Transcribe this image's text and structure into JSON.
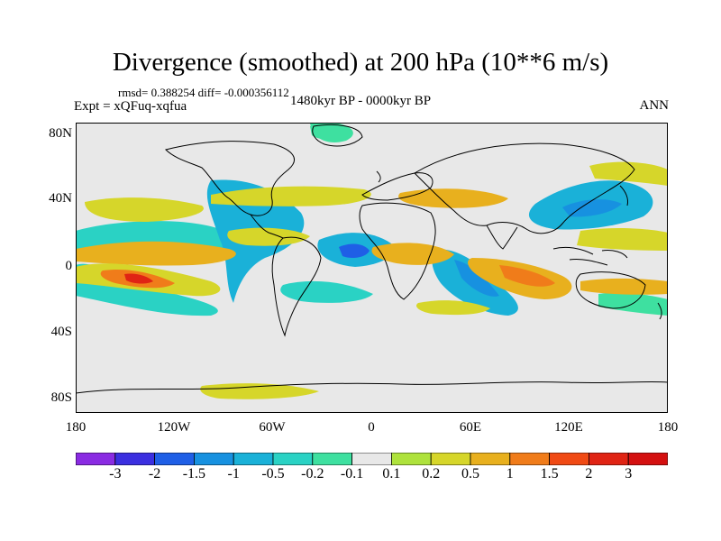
{
  "title": "Divergence (smoothed) at 200 hPa (10**6 m/s)",
  "stats": "rmsd= 0.388254 diff= -0.000356112",
  "experiment": "Expt = xQFuq-xqfua",
  "period": "1480kyr BP - 0000kyr BP",
  "season": "ANN",
  "lat_ticks": [
    "80N",
    "40N",
    "0",
    "40S",
    "80S"
  ],
  "lon_ticks": [
    "180",
    "120W",
    "60W",
    "0",
    "60E",
    "120E",
    "180"
  ],
  "colorbar": {
    "levels": [
      "-3",
      "-2",
      "-1.5",
      "-1",
      "-0.5",
      "-0.2",
      "-0.1",
      "0.1",
      "0.2",
      "0.5",
      "1",
      "1.5",
      "2",
      "3"
    ],
    "colors": [
      "#8a2be2",
      "#3b2fe0",
      "#1f5fe6",
      "#1791e0",
      "#1ab1d8",
      "#2ad2c4",
      "#3ee0a0",
      "#e8e8e8",
      "#aee23c",
      "#d6d62a",
      "#e8b01e",
      "#f07c1a",
      "#f04a14",
      "#e02414",
      "#d41010"
    ]
  },
  "map": {
    "background_color": "#e8e8e8",
    "coast_color": "#000000"
  }
}
